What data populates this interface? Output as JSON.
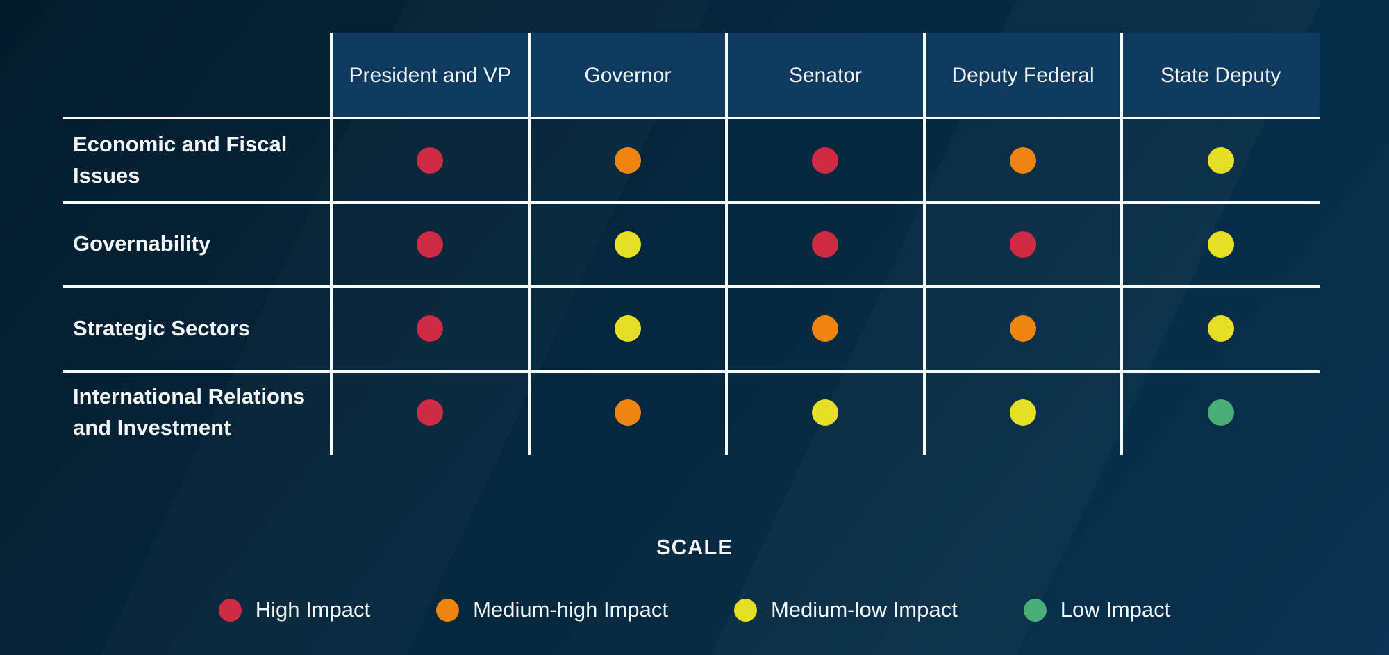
{
  "chart_data": {
    "type": "heatmap",
    "title": "",
    "columns": [
      "President and VP",
      "Governor",
      "Senator",
      "Deputy Federal",
      "State Deputy"
    ],
    "rows": [
      "Economic and Fiscal Issues",
      "Governability",
      "Strategic Sectors",
      "International Relations and Investment"
    ],
    "values": [
      [
        "high",
        "medium-high",
        "high",
        "medium-high",
        "medium-low"
      ],
      [
        "high",
        "medium-low",
        "high",
        "high",
        "medium-low"
      ],
      [
        "high",
        "medium-low",
        "medium-high",
        "medium-high",
        "medium-low"
      ],
      [
        "high",
        "medium-high",
        "medium-low",
        "medium-low",
        "low"
      ]
    ],
    "levels": {
      "high": {
        "label": "High Impact",
        "color": "#cf2b45"
      },
      "medium-high": {
        "label": "Medium-high Impact",
        "color": "#ef850f"
      },
      "medium-low": {
        "label": "Medium-low Impact",
        "color": "#e5df26"
      },
      "low": {
        "label": "Low Impact",
        "color": "#4bae77"
      }
    },
    "legend": {
      "title": "SCALE",
      "order": [
        "high",
        "medium-high",
        "medium-low",
        "low"
      ],
      "position": "bottom"
    },
    "layout": {
      "header_fill": "#0d3a5e",
      "grid_line_color": "#ffffff",
      "background": "dark-navy-gradient",
      "legend_position": "bottom-center"
    }
  }
}
